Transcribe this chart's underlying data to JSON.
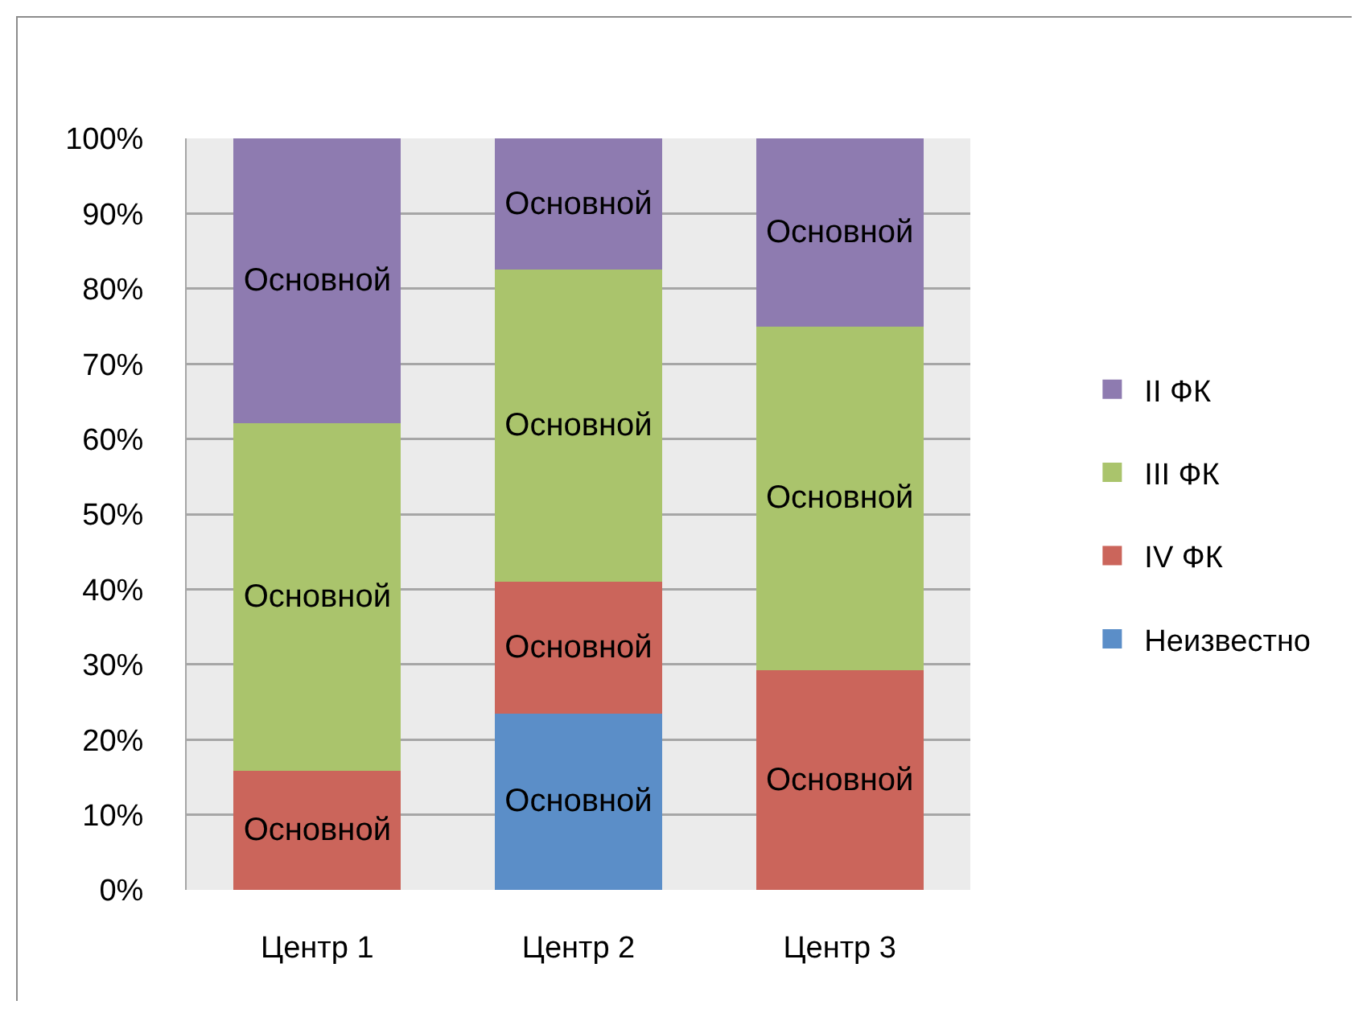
{
  "chart_data": {
    "type": "bar",
    "stacked": true,
    "categories": [
      "Центр 1",
      "Центр 2",
      "Центр 3"
    ],
    "series": [
      {
        "name": "Неизвестно",
        "color": "#5b8ec8",
        "values": [
          null,
          23.5,
          null
        ],
        "value_labels": [
          null,
          "Основной",
          null
        ]
      },
      {
        "name": "IV ФК",
        "color": "#cb655b",
        "values": [
          15.8,
          17.5,
          29.2
        ],
        "value_labels": [
          "Основной",
          "Основной",
          "Основной"
        ]
      },
      {
        "name": "III ФК",
        "color": "#aac46c",
        "values": [
          46.3,
          41.5,
          45.8
        ],
        "value_labels": [
          "Основной",
          "Основной",
          "Основной"
        ]
      },
      {
        "name": "II ФК",
        "color": "#8e7bb0",
        "values": [
          37.9,
          17.5,
          25.0
        ],
        "value_labels": [
          "Основной",
          "Основной",
          "Основной"
        ]
      }
    ],
    "ylim": [
      0,
      100
    ],
    "yticks": [
      {
        "value": 0,
        "label": "0%"
      },
      {
        "value": 10,
        "label": "10%"
      },
      {
        "value": 20,
        "label": "20%"
      },
      {
        "value": 30,
        "label": "30%"
      },
      {
        "value": 40,
        "label": "40%"
      },
      {
        "value": 50,
        "label": "50%"
      },
      {
        "value": 60,
        "label": "60%"
      },
      {
        "value": 70,
        "label": "70%"
      },
      {
        "value": 80,
        "label": "80%"
      },
      {
        "value": 90,
        "label": "90%"
      },
      {
        "value": 100,
        "label": "100%"
      }
    ],
    "grid": "y",
    "legend": "right"
  }
}
